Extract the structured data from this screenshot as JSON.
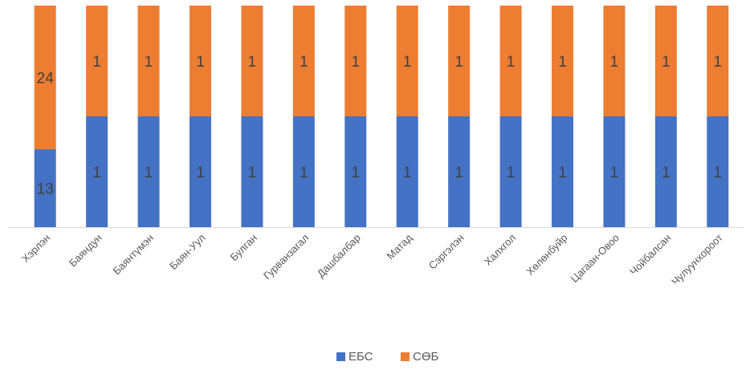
{
  "chart_data": {
    "type": "bar",
    "stacked": "percent",
    "categories": [
      "Хэрлэн",
      "Баяндун",
      "Баянтүмэн",
      "Баян-Уул",
      "Булган",
      "Гурванзагал",
      "Дашбалбар",
      "Матад",
      "Сэргэлэн",
      "Халхгол",
      "Хөлөнбуйр",
      "Цагаан-Овоо",
      "Чойбалсан",
      "Чулуунхороот"
    ],
    "series": [
      {
        "name": "ЕБС",
        "color": "#4472C4",
        "values": [
          13,
          1,
          1,
          1,
          1,
          1,
          1,
          1,
          1,
          1,
          1,
          1,
          1,
          1
        ]
      },
      {
        "name": "СӨБ",
        "color": "#ED7D31",
        "values": [
          24,
          1,
          1,
          1,
          1,
          1,
          1,
          1,
          1,
          1,
          1,
          1,
          1,
          1
        ]
      }
    ],
    "title": "",
    "xlabel": "",
    "ylabel": "",
    "ylim": [
      0,
      1
    ],
    "grid": false,
    "legend_position": "bottom",
    "data_labels": true
  }
}
